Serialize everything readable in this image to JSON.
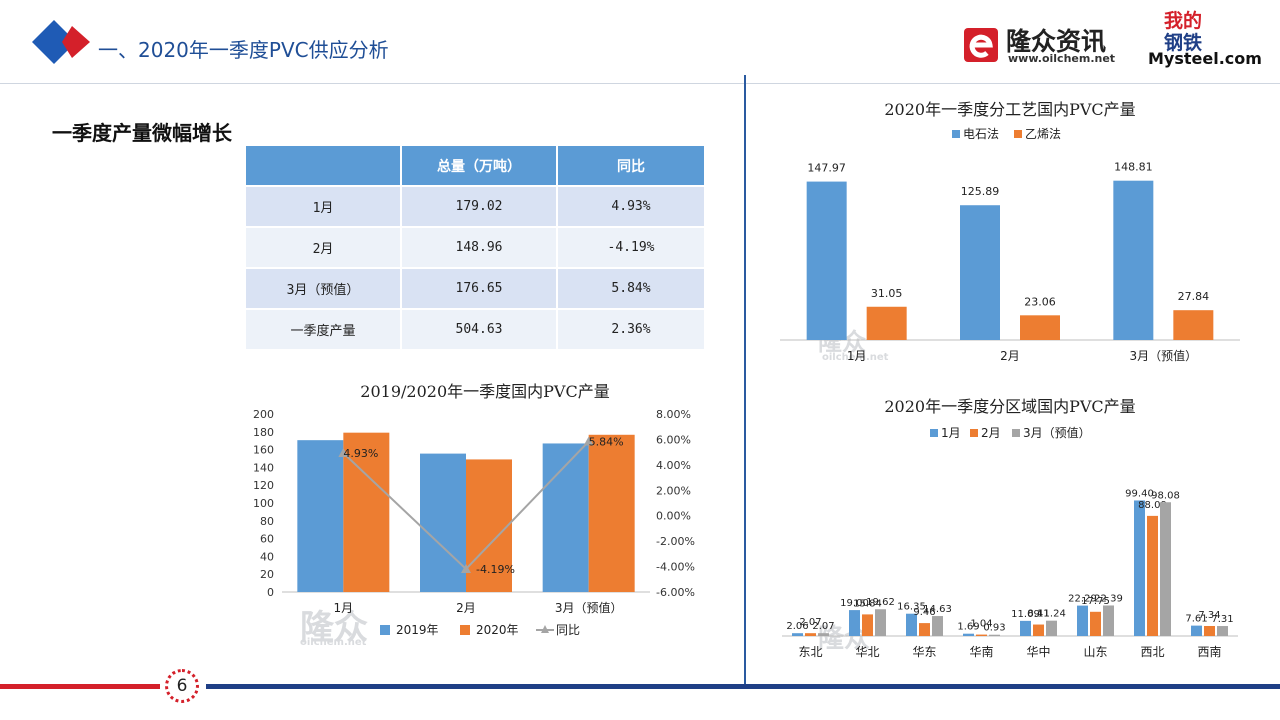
{
  "header": {
    "title": "一、2020年一季度PVC供应分析",
    "brand_oilchem": "隆众资讯",
    "brand_oilchem_url": "www.oilchem.net",
    "brand_mysteel_cn1": "我的",
    "brand_mysteel_cn2": "钢铁",
    "brand_mysteel": "Mysteel.com"
  },
  "section_heading": "一季度产量微幅增长",
  "summary_table": {
    "headers": [
      "",
      "总量（万吨）",
      "同比"
    ],
    "rows": [
      [
        "1月",
        "179.02",
        "4.93%"
      ],
      [
        "2月",
        "148.96",
        "-4.19%"
      ],
      [
        "3月（预值）",
        "176.65",
        "5.84%"
      ],
      [
        "一季度产量",
        "504.63",
        "2.36%"
      ]
    ]
  },
  "page_number": "6",
  "watermark": {
    "text": "隆众",
    "url": "oilchem.net"
  },
  "colors": {
    "blue": "#5b9bd5",
    "orange": "#ed7d31",
    "gray": "#a5a5a5",
    "line": "#a5a5a5",
    "title": "#1f4e96"
  },
  "chart_data": [
    {
      "id": "yoy",
      "type": "bar",
      "title": "2019/2020年一季度国内PVC产量",
      "categories": [
        "1月",
        "2月",
        "3月（预值）"
      ],
      "series": [
        {
          "name": "2019年",
          "values": [
            170.6,
            155.5,
            166.9
          ]
        },
        {
          "name": "2020年",
          "values": [
            179.02,
            148.96,
            176.65
          ]
        }
      ],
      "line_series": {
        "name": "同比",
        "values": [
          4.93,
          -4.19,
          5.84
        ],
        "labels": [
          "4.93%",
          "-4.19%",
          "5.84%"
        ]
      },
      "ylim": [
        0,
        200
      ],
      "yticks": [
        "0",
        "20",
        "40",
        "60",
        "80",
        "100",
        "120",
        "140",
        "160",
        "180",
        "200"
      ],
      "y2lim": [
        -6,
        8
      ],
      "y2ticks": [
        "-6.00%",
        "-4.00%",
        "-2.00%",
        "0.00%",
        "2.00%",
        "4.00%",
        "6.00%",
        "8.00%"
      ],
      "legend": [
        "2019年",
        "2020年",
        "同比"
      ]
    },
    {
      "id": "process",
      "type": "bar",
      "title": "2020年一季度分工艺国内PVC产量",
      "categories": [
        "1月",
        "2月",
        "3月（预值）"
      ],
      "series": [
        {
          "name": "电石法",
          "values": [
            147.97,
            125.89,
            148.81
          ],
          "labels": [
            "147.97",
            "125.89",
            "148.81"
          ]
        },
        {
          "name": "乙烯法",
          "values": [
            31.05,
            23.06,
            27.84
          ],
          "labels": [
            "31.05",
            "23.06",
            "27.84"
          ]
        }
      ],
      "ylim": [
        0,
        170
      ],
      "legend": [
        "电石法",
        "乙烯法"
      ]
    },
    {
      "id": "region",
      "type": "bar",
      "title": "2020年一季度分区域国内PVC产量",
      "categories": [
        "东北",
        "华北",
        "华东",
        "华南",
        "华中",
        "山东",
        "西北",
        "西南"
      ],
      "series": [
        {
          "name": "1月",
          "values": [
            2.06,
            19.0,
            16.35,
            1.69,
            11.09,
            22.29,
            99.4,
            7.61
          ],
          "labels": [
            "2.06",
            "19.00",
            "16.35",
            "1.69",
            "11.09",
            "22.29",
            "99.40",
            "7.61"
          ]
        },
        {
          "name": "2月",
          "values": [
            2.07,
            15.84,
            9.46,
            1.04,
            8.41,
            17.75,
            88.09,
            7.34
          ],
          "labels": [
            "2.07",
            "15.84",
            "9.46",
            "1.04",
            "8.41",
            "17.75",
            "88.09",
            "7.34"
          ]
        },
        {
          "name": "3月（预值）",
          "values": [
            2.07,
            19.62,
            14.63,
            0.93,
            11.24,
            22.39,
            98.08,
            7.31
          ],
          "labels": [
            "2.07",
            "19.62",
            "14.63",
            "0.93",
            "11.24",
            "22.39",
            "98.08",
            "7.31"
          ]
        }
      ],
      "ylim": [
        0,
        110
      ],
      "legend": [
        "1月",
        "2月",
        "3月（预值）"
      ]
    }
  ]
}
